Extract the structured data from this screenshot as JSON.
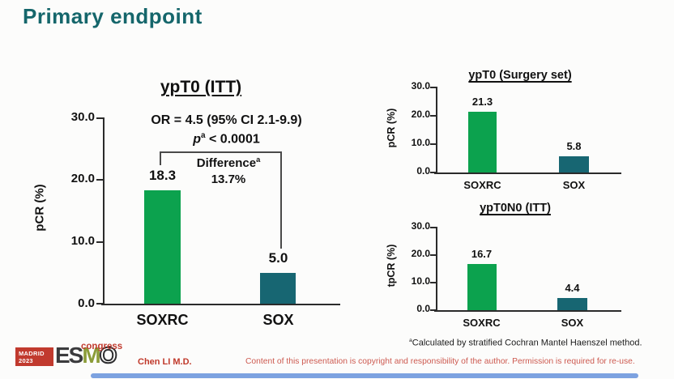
{
  "slide": {
    "title": "Primary endpoint"
  },
  "colors": {
    "title_teal": "#15666b",
    "bar_green": "#0ca24e",
    "bar_teal": "#176672",
    "axis": "#2b2b2b",
    "bracket": "#4a4a4a",
    "red_text": "#c0392b",
    "disclaimer_red": "#cd5a50",
    "logo_red": "#c13a2e",
    "logo_dark": "#3b3b3d",
    "logo_olive": "#8b9c38",
    "bottom_bar_blue": "#5b8bd9",
    "background": "#fcfcfb"
  },
  "chart_data": [
    {
      "type": "bar",
      "title": "ypT0 (ITT)",
      "ylabel": "pCR (%)",
      "xlabel": "",
      "categories": [
        "SOXRC",
        "SOX"
      ],
      "values": [
        18.3,
        5.0
      ],
      "value_labels": [
        "18.3",
        "5.0"
      ],
      "ylim": [
        0,
        30
      ],
      "yticks": [
        "30.0",
        "20.0",
        "10.0",
        "0.0"
      ],
      "series_colors": [
        "bar_green",
        "bar_teal"
      ],
      "grid": "off",
      "legend": "none",
      "annotations": {
        "or_text": "OR = 4.5 (95% CI 2.1-9.9)",
        "p_symbol": "p",
        "p_sup": "a",
        "p_rest": " < 0.0001",
        "difference_label": "Difference",
        "difference_sup": "a",
        "difference_value": "13.7%"
      }
    },
    {
      "type": "bar",
      "title": "ypT0 (Surgery set)",
      "ylabel": "pCR (%)",
      "xlabel": "",
      "categories": [
        "SOXRC",
        "SOX"
      ],
      "values": [
        21.3,
        5.8
      ],
      "value_labels": [
        "21.3",
        "5.8"
      ],
      "ylim": [
        0,
        30
      ],
      "yticks": [
        "30.0",
        "20.0",
        "10.0",
        "0.0"
      ],
      "series_colors": [
        "bar_green",
        "bar_teal"
      ],
      "grid": "off",
      "legend": "none"
    },
    {
      "type": "bar",
      "title": "ypT0N0 (ITT)",
      "ylabel": "tpCR (%)",
      "xlabel": "",
      "categories": [
        "SOXRC",
        "SOX"
      ],
      "values": [
        16.7,
        4.4
      ],
      "value_labels": [
        "16.7",
        "4.4"
      ],
      "ylim": [
        0,
        30
      ],
      "yticks": [
        "30.0",
        "20.0",
        "10.0",
        "0.0"
      ],
      "series_colors": [
        "bar_green",
        "bar_teal"
      ],
      "grid": "off",
      "legend": "none"
    }
  ],
  "footnote": {
    "sup": "a",
    "text": "Calculated by stratified Cochran Mantel Haenszel method."
  },
  "footer": {
    "author": "Chen LI M.D.",
    "disclaimer": "Content of this presentation is copyright and responsibility of the author. Permission is required for re-use."
  },
  "logo": {
    "location": "MADRID",
    "year": "2023",
    "esmo_es": "ES",
    "esmo_m": "M",
    "esmo_o": "O",
    "congress": "congress"
  }
}
